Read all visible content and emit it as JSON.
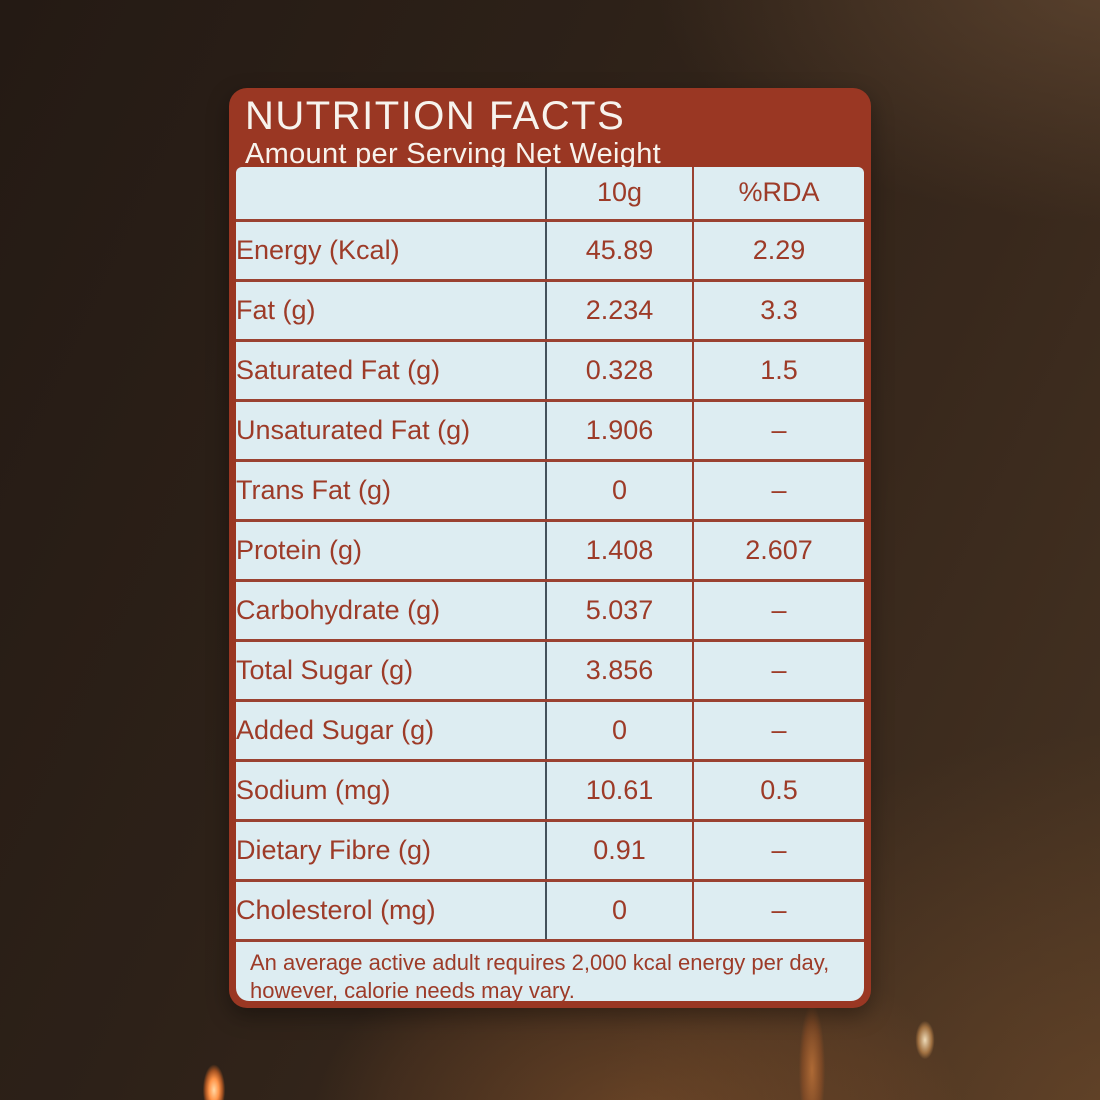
{
  "header": {
    "title": "NUTRITION FACTS",
    "subtitle": "Amount per Serving Net Weight"
  },
  "table": {
    "columns": [
      "",
      "10g",
      "%RDA"
    ],
    "rows": [
      {
        "label": "Energy (Kcal)",
        "value": "45.89",
        "rda": "2.29"
      },
      {
        "label": "Fat (g)",
        "value": "2.234",
        "rda": "3.3"
      },
      {
        "label": "Saturated Fat (g)",
        "value": "0.328",
        "rda": "1.5"
      },
      {
        "label": "Unsaturated Fat (g)",
        "value": "1.906",
        "rda": "–"
      },
      {
        "label": "Trans Fat (g)",
        "value": "0",
        "rda": "–"
      },
      {
        "label": "Protein (g)",
        "value": "1.408",
        "rda": "2.607"
      },
      {
        "label": "Carbohydrate (g)",
        "value": "5.037",
        "rda": "–"
      },
      {
        "label": "Total Sugar (g)",
        "value": "3.856",
        "rda": "–"
      },
      {
        "label": "Added Sugar (g)",
        "value": "0",
        "rda": "–"
      },
      {
        "label": "Sodium (mg)",
        "value": "10.61",
        "rda": "0.5"
      },
      {
        "label": "Dietary Fibre (g)",
        "value": "0.91",
        "rda": "–"
      },
      {
        "label": "Cholesterol (mg)",
        "value": "0",
        "rda": "–"
      }
    ]
  },
  "footnote": {
    "line1": "An average active adult requires 2,000 kcal energy per day,",
    "line2": "however, calorie needs may vary."
  },
  "colors": {
    "card_red": "#9a3723",
    "panel_blue": "#ddedf2",
    "text_red": "#9d3b28",
    "rule_red": "#9a4232",
    "divider_dark": "#44525c",
    "header_text": "#f7f3ed"
  }
}
